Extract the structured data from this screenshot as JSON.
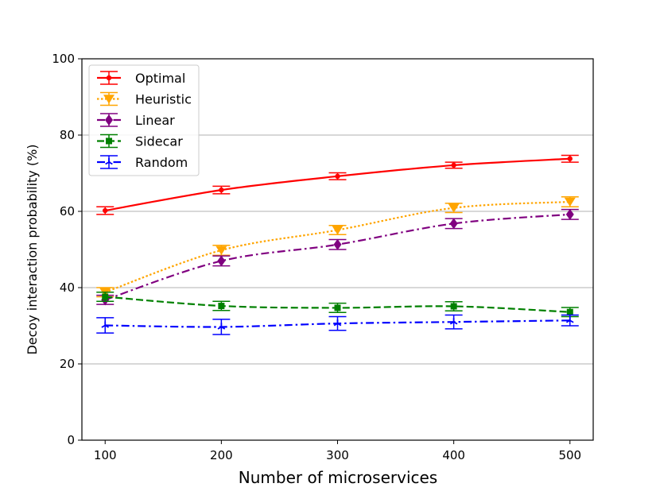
{
  "chart_data": {
    "type": "line",
    "title": "",
    "xlabel": "Number of microservices",
    "ylabel": "Decoy interaction probability (%)",
    "x": [
      100,
      200,
      300,
      400,
      500
    ],
    "x_ticks": [
      "100",
      "200",
      "300",
      "400",
      "500"
    ],
    "xlim": [
      80,
      520
    ],
    "ylim": [
      0,
      100
    ],
    "y_ticks": [
      "0",
      "20",
      "40",
      "60",
      "80",
      "100"
    ],
    "y_tick_values": [
      0,
      20,
      40,
      60,
      80,
      100
    ],
    "grid": "horizontal",
    "legend_position": "top-left",
    "series": [
      {
        "name": "Optimal",
        "color": "#ff0000",
        "linestyle": "solid",
        "marker": "circle",
        "values": [
          60.2,
          65.6,
          69.2,
          72.1,
          73.8
        ],
        "errors": [
          1.0,
          1.0,
          0.9,
          0.8,
          0.9
        ]
      },
      {
        "name": "Heuristic",
        "color": "#ffa500",
        "linestyle": "dotted",
        "marker": "triangle-down",
        "values": [
          38.8,
          49.8,
          55.1,
          60.9,
          62.5
        ],
        "errors": [
          1.2,
          1.3,
          1.2,
          1.2,
          1.3
        ]
      },
      {
        "name": "Linear",
        "color": "#800080",
        "linestyle": "dashdot",
        "marker": "diamond",
        "values": [
          36.8,
          47.0,
          51.3,
          56.8,
          59.2
        ],
        "errors": [
          1.2,
          1.3,
          1.3,
          1.3,
          1.3
        ]
      },
      {
        "name": "Sidecar",
        "color": "#008000",
        "linestyle": "dashed",
        "marker": "square",
        "values": [
          37.6,
          35.2,
          34.7,
          35.1,
          33.6
        ],
        "errors": [
          1.2,
          1.2,
          1.2,
          1.2,
          1.2
        ]
      },
      {
        "name": "Random",
        "color": "#0000ff",
        "linestyle": "dashdot",
        "marker": "tri-up",
        "values": [
          30.1,
          29.7,
          30.6,
          31.0,
          31.4
        ],
        "errors": [
          2.0,
          2.0,
          1.8,
          1.8,
          1.4
        ]
      }
    ]
  }
}
